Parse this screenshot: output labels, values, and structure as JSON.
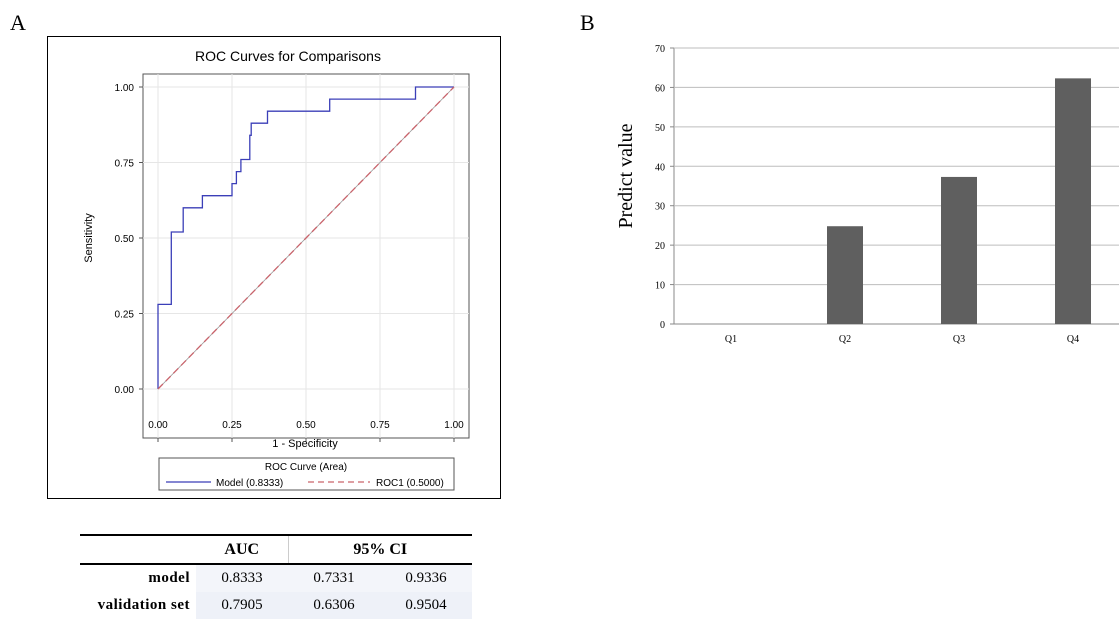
{
  "panels": {
    "a_label": "A",
    "b_label": "B"
  },
  "chart_data": [
    {
      "type": "line",
      "title": "ROC Curves for Comparisons",
      "xlabel": "1 - Specificity",
      "ylabel": "Sensitivity",
      "xlim": [
        0,
        1
      ],
      "ylim": [
        0,
        1
      ],
      "xticks": [
        "0.00",
        "0.25",
        "0.50",
        "0.75",
        "1.00"
      ],
      "yticks": [
        "0.00",
        "0.25",
        "0.50",
        "0.75",
        "1.00"
      ],
      "grid": true,
      "legend_title": "ROC Curve (Area)",
      "legend_position": "bottom",
      "series": [
        {
          "name": "Model (0.8333)",
          "color": "#3b3fb8",
          "x": [
            0,
            0,
            0.01,
            0.01,
            0.045,
            0.045,
            0.045,
            0.085,
            0.085,
            0.15,
            0.15,
            0.25,
            0.25,
            0.265,
            0.265,
            0.28,
            0.28,
            0.31,
            0.31,
            0.315,
            0.315,
            0.33,
            0.33,
            0.37,
            0.37,
            0.58,
            0.58,
            0.87,
            0.87,
            1.0
          ],
          "y": [
            0,
            0.28,
            0.28,
            0.28,
            0.28,
            0.52,
            0.52,
            0.52,
            0.6,
            0.6,
            0.64,
            0.64,
            0.68,
            0.68,
            0.72,
            0.72,
            0.76,
            0.76,
            0.84,
            0.84,
            0.88,
            0.88,
            0.88,
            0.88,
            0.92,
            0.92,
            0.96,
            0.96,
            1.0,
            1.0
          ]
        },
        {
          "name": "ROC1 (0.5000)",
          "color": "#c9636b",
          "dash": "dashed",
          "x": [
            0,
            1
          ],
          "y": [
            0,
            1
          ]
        }
      ]
    },
    {
      "type": "bar",
      "ylabel": "Predict value",
      "categories": [
        "Q1",
        "Q2",
        "Q3",
        "Q4"
      ],
      "values": [
        0,
        24.8,
        37.3,
        62.3
      ],
      "ylim": [
        0,
        70
      ],
      "yticks": [
        "0",
        "10",
        "20",
        "30",
        "40",
        "50",
        "60",
        "70"
      ],
      "grid": true,
      "bar_color": "#5f5f5f"
    }
  ],
  "table": {
    "headers": [
      "",
      "AUC",
      "95% CI"
    ],
    "rows": [
      {
        "label": "model",
        "auc": "0.8333",
        "ci_low": "0.7331",
        "ci_high": "0.9336"
      },
      {
        "label": "validation set",
        "auc": "0.7905",
        "ci_low": "0.6306",
        "ci_high": "0.9504"
      }
    ]
  }
}
